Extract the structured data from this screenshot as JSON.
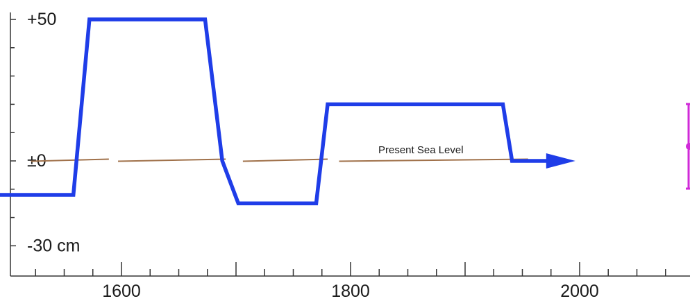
{
  "chart_data": {
    "type": "line",
    "title": "",
    "xlabel": "",
    "ylabel": "",
    "xlim": [
      1500,
      2000
    ],
    "ylim": [
      -36,
      52
    ],
    "x_ticks": [
      {
        "value": 1600,
        "label": "1600"
      },
      {
        "value": 1800,
        "label": "1800"
      },
      {
        "value": 2000,
        "label": "2000"
      }
    ],
    "y_ticks": [
      {
        "value": 50,
        "label": "+50"
      },
      {
        "value": 0,
        "label": "±0"
      },
      {
        "value": -30,
        "label": "-30 cm"
      }
    ],
    "x_minor_step": 25,
    "y_minor_step": 10,
    "reference_line": {
      "y": 0,
      "label": "Present Sea Level",
      "color": "#a0714a"
    },
    "series": [
      {
        "color": "#1f3de8",
        "arrow_end": true,
        "points": [
          {
            "x": 1490,
            "y": -12
          },
          {
            "x": 1558,
            "y": -12
          },
          {
            "x": 1572,
            "y": 50
          },
          {
            "x": 1596,
            "y": 50
          },
          {
            "x": 1673,
            "y": 50
          },
          {
            "x": 1688,
            "y": 0
          },
          {
            "x": 1702,
            "y": -15
          },
          {
            "x": 1735,
            "y": -15
          },
          {
            "x": 1770,
            "y": -15
          },
          {
            "x": 1780,
            "y": 20
          },
          {
            "x": 1900,
            "y": 20
          },
          {
            "x": 1933,
            "y": 20
          },
          {
            "x": 1941,
            "y": 0
          },
          {
            "x": 1972,
            "y": 0
          }
        ]
      }
    ]
  }
}
